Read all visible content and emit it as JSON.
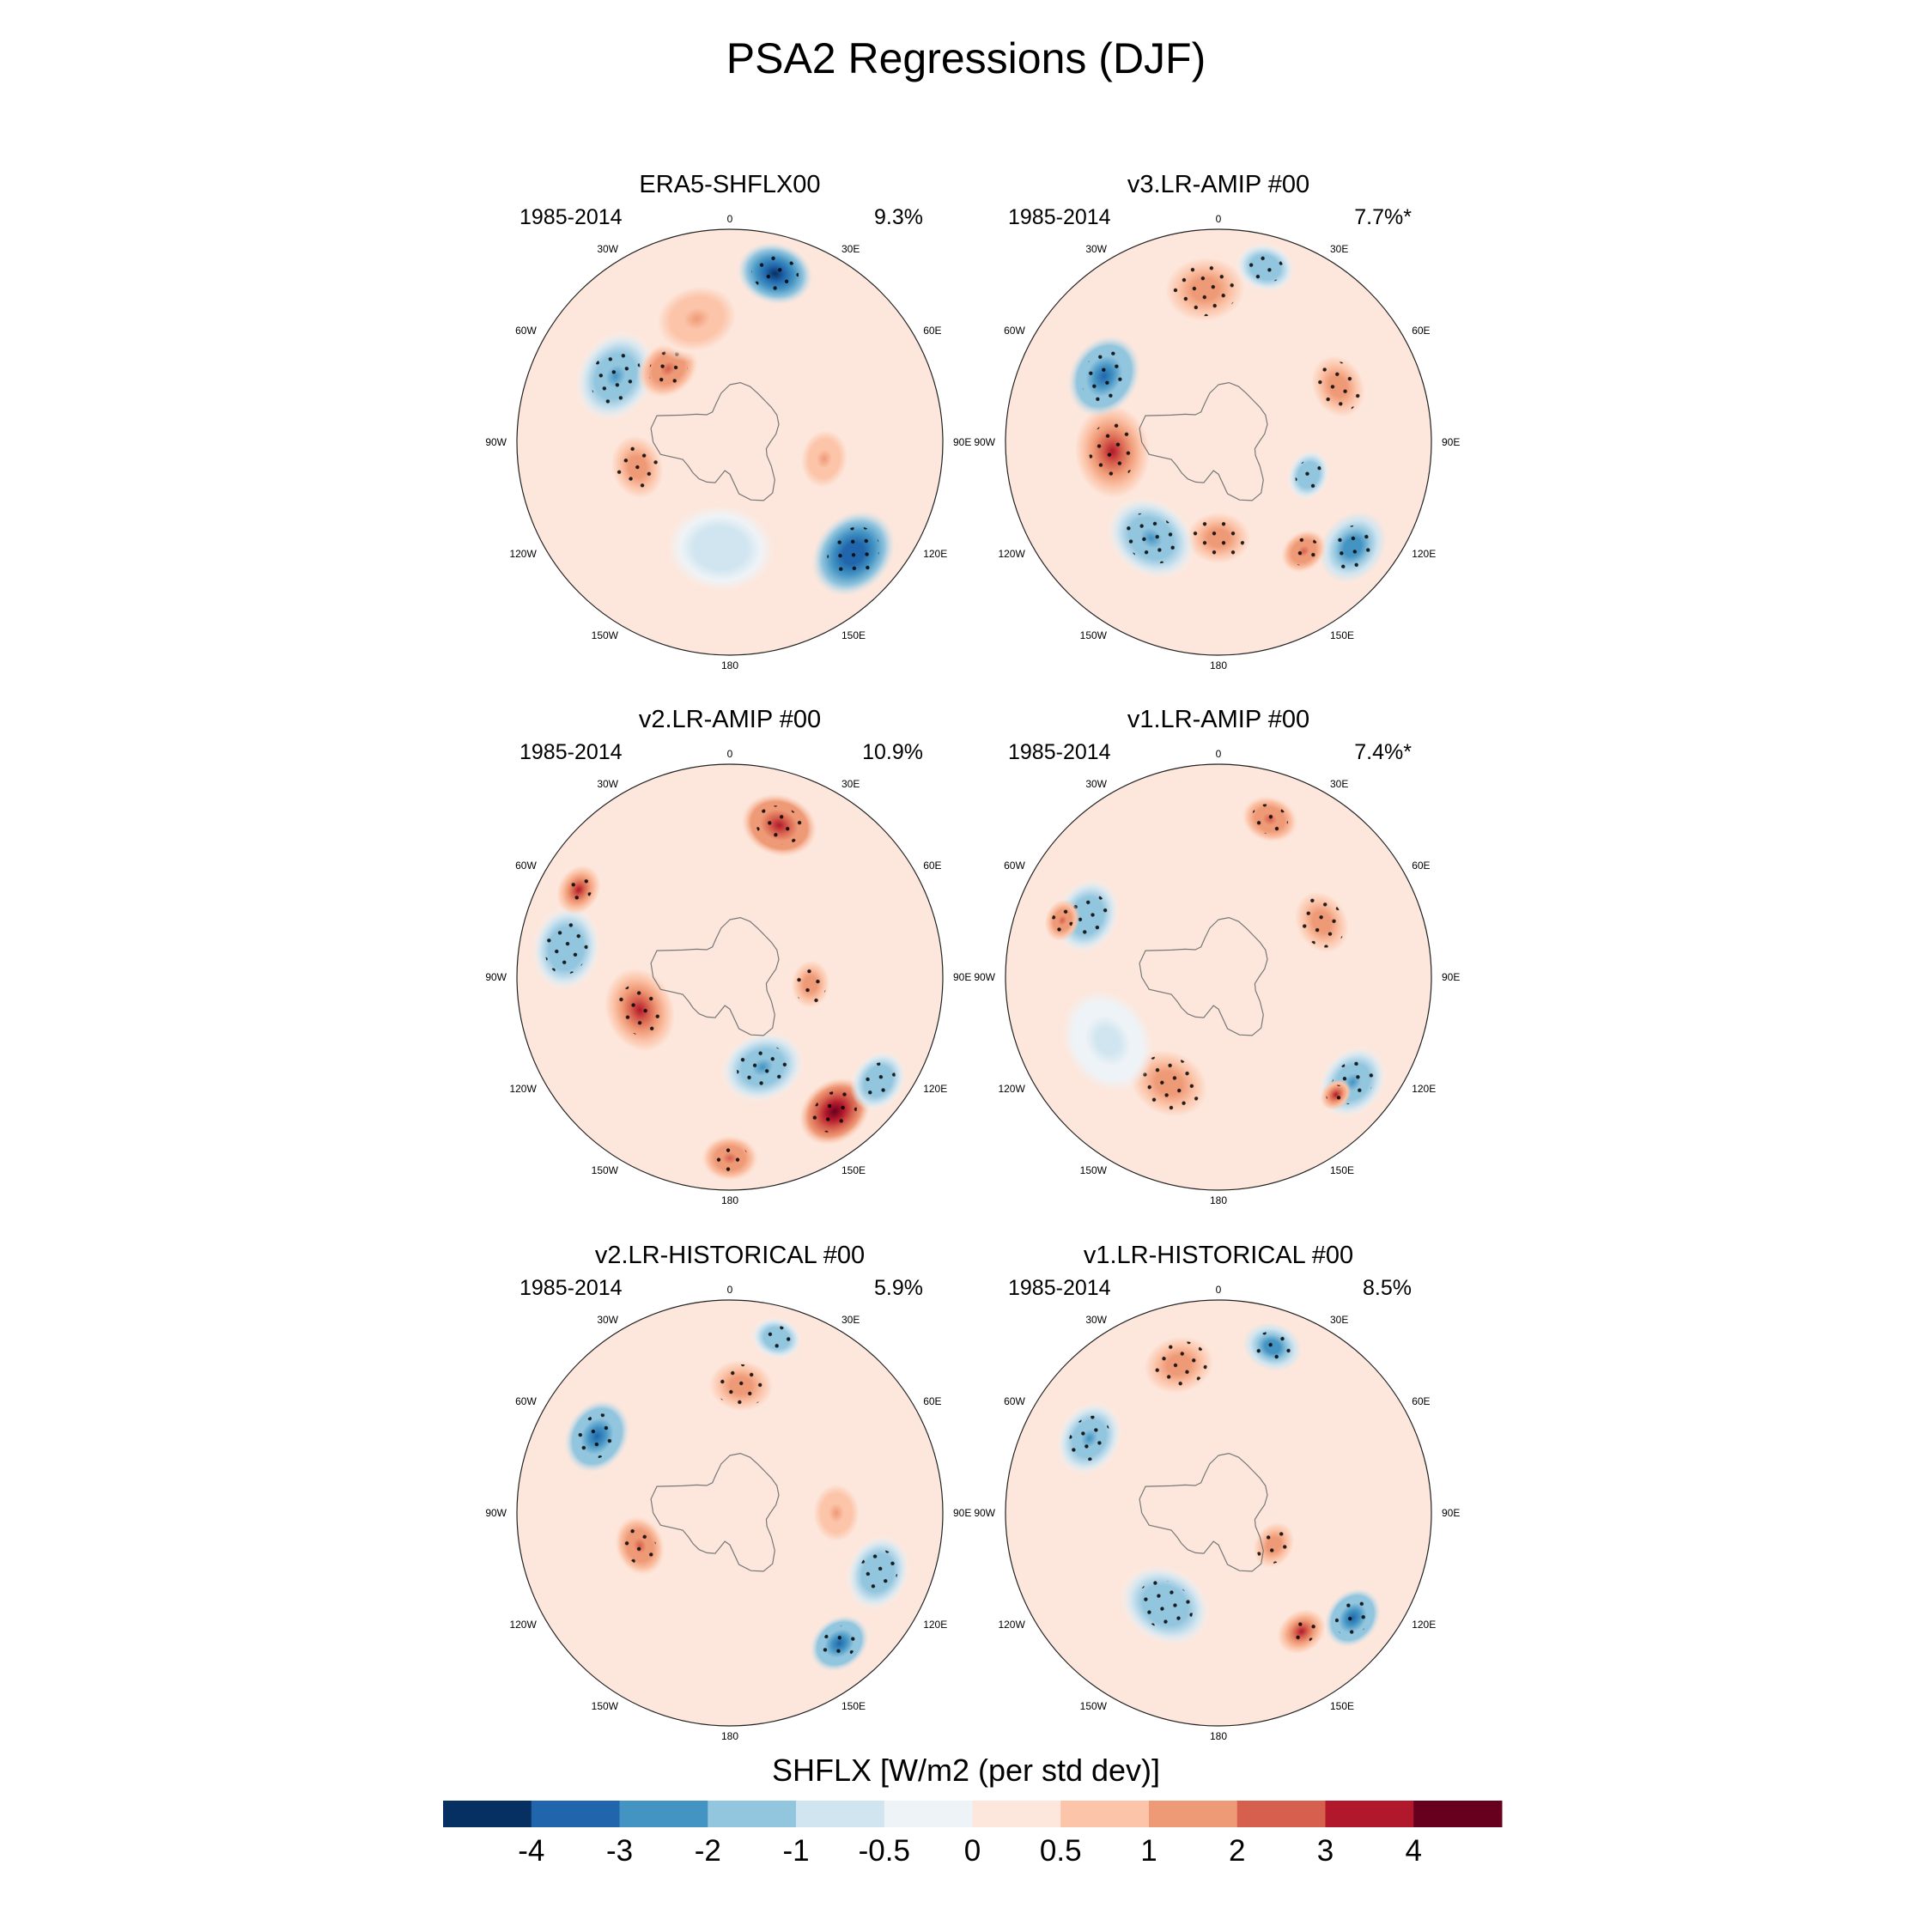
{
  "title": "PSA2 Regressions (DJF)",
  "colorbar": {
    "title": "SHFLX [W/m2 (per std dev)]",
    "colors": [
      "#053061",
      "#2166ac",
      "#4393c3",
      "#92c5de",
      "#d1e5f0",
      "#eef3f7",
      "#fde7dc",
      "#fcc4a9",
      "#ef9a77",
      "#d6604d",
      "#b2182b",
      "#67001f"
    ],
    "tick_labels": [
      "-4",
      "-3",
      "-2",
      "-1",
      "-0.5",
      "0",
      "0.5",
      "1",
      "2",
      "3",
      "4"
    ]
  },
  "lon_labels": [
    "0",
    "30E",
    "60E",
    "90E",
    "120E",
    "150E",
    "180",
    "150W",
    "120W",
    "90W",
    "60W",
    "30W"
  ],
  "panels": [
    {
      "title": "ERA5-SHFLX00",
      "years": "1985-2014",
      "variance": "9.3%",
      "blobs": [
        {
          "lon": 15,
          "r": 0.82,
          "v": -4.5,
          "s": 0.18
        },
        {
          "lon": 132,
          "r": 0.78,
          "v": -4.0,
          "s": 0.22
        },
        {
          "lon": 300,
          "r": 0.62,
          "v": -2.5,
          "s": 0.22
        },
        {
          "lon": 320,
          "r": 0.45,
          "v": 2.0,
          "s": 0.16
        },
        {
          "lon": 345,
          "r": 0.6,
          "v": 1.0,
          "s": 0.25
        },
        {
          "lon": 255,
          "r": 0.45,
          "v": 1.5,
          "s": 0.2
        },
        {
          "lon": 100,
          "r": 0.45,
          "v": 1.0,
          "s": 0.18
        },
        {
          "lon": 185,
          "r": 0.5,
          "v": -1.0,
          "s": 0.25
        }
      ]
    },
    {
      "title": "v3.LR-AMIP  #00",
      "years": "1985-2014",
      "variance": "7.7%*",
      "blobs": [
        {
          "lon": 355,
          "r": 0.72,
          "v": 1.5,
          "s": 0.25
        },
        {
          "lon": 15,
          "r": 0.85,
          "v": -2.0,
          "s": 0.14
        },
        {
          "lon": 65,
          "r": 0.62,
          "v": 1.5,
          "s": 0.2
        },
        {
          "lon": 110,
          "r": 0.45,
          "v": -2.0,
          "s": 0.12
        },
        {
          "lon": 128,
          "r": 0.8,
          "v": -3.0,
          "s": 0.18
        },
        {
          "lon": 142,
          "r": 0.65,
          "v": 2.0,
          "s": 0.12
        },
        {
          "lon": 180,
          "r": 0.45,
          "v": 1.5,
          "s": 0.2
        },
        {
          "lon": 215,
          "r": 0.55,
          "v": -2.5,
          "s": 0.22
        },
        {
          "lon": 265,
          "r": 0.5,
          "v": 3.0,
          "s": 0.22
        },
        {
          "lon": 300,
          "r": 0.62,
          "v": -3.5,
          "s": 0.2
        }
      ]
    },
    {
      "title": "v2.LR-AMIP  #00",
      "years": "1985-2014",
      "variance": "10.9%",
      "blobs": [
        {
          "lon": 18,
          "r": 0.75,
          "v": 3.5,
          "s": 0.18
        },
        {
          "lon": 142,
          "r": 0.8,
          "v": 4.5,
          "s": 0.18
        },
        {
          "lon": 160,
          "r": 0.45,
          "v": -2.5,
          "s": 0.2
        },
        {
          "lon": 180,
          "r": 0.85,
          "v": 2.0,
          "s": 0.14
        },
        {
          "lon": 250,
          "r": 0.45,
          "v": 3.0,
          "s": 0.2
        },
        {
          "lon": 280,
          "r": 0.78,
          "v": -2.0,
          "s": 0.2
        },
        {
          "lon": 300,
          "r": 0.82,
          "v": 3.0,
          "s": 0.12
        },
        {
          "lon": 95,
          "r": 0.38,
          "v": 1.5,
          "s": 0.15
        },
        {
          "lon": 125,
          "r": 0.85,
          "v": -2.0,
          "s": 0.15
        }
      ]
    },
    {
      "title": "v1.LR-AMIP  #00",
      "years": "1985-2014",
      "variance": "7.4%*",
      "blobs": [
        {
          "lon": 18,
          "r": 0.78,
          "v": 2.0,
          "s": 0.14
        },
        {
          "lon": 62,
          "r": 0.55,
          "v": 1.5,
          "s": 0.2
        },
        {
          "lon": 128,
          "r": 0.8,
          "v": -2.5,
          "s": 0.18
        },
        {
          "lon": 135,
          "r": 0.78,
          "v": 3.0,
          "s": 0.08
        },
        {
          "lon": 205,
          "r": 0.55,
          "v": 1.5,
          "s": 0.25
        },
        {
          "lon": 295,
          "r": 0.68,
          "v": -2.0,
          "s": 0.18
        },
        {
          "lon": 290,
          "r": 0.78,
          "v": 2.5,
          "s": 0.1
        },
        {
          "lon": 240,
          "r": 0.6,
          "v": -0.8,
          "s": 0.25
        }
      ]
    },
    {
      "title": "v2.LR-HISTORICAL  #00",
      "years": "1985-2014",
      "variance": "5.9%",
      "blobs": [
        {
          "lon": 5,
          "r": 0.6,
          "v": 1.5,
          "s": 0.2
        },
        {
          "lon": 15,
          "r": 0.85,
          "v": -2.0,
          "s": 0.12
        },
        {
          "lon": 112,
          "r": 0.75,
          "v": -2.0,
          "s": 0.18
        },
        {
          "lon": 140,
          "r": 0.8,
          "v": -3.5,
          "s": 0.15
        },
        {
          "lon": 250,
          "r": 0.45,
          "v": 2.0,
          "s": 0.15
        },
        {
          "lon": 300,
          "r": 0.72,
          "v": -3.5,
          "s": 0.18
        },
        {
          "lon": 90,
          "r": 0.5,
          "v": 1.0,
          "s": 0.18
        }
      ]
    },
    {
      "title": "v1.LR-HISTORICAL  #00",
      "years": "1985-2014",
      "variance": "8.5%",
      "blobs": [
        {
          "lon": 345,
          "r": 0.72,
          "v": 1.5,
          "s": 0.22
        },
        {
          "lon": 18,
          "r": 0.82,
          "v": -3.0,
          "s": 0.14
        },
        {
          "lon": 128,
          "r": 0.8,
          "v": -3.5,
          "s": 0.15
        },
        {
          "lon": 145,
          "r": 0.68,
          "v": 3.0,
          "s": 0.12
        },
        {
          "lon": 210,
          "r": 0.5,
          "v": -2.0,
          "s": 0.22
        },
        {
          "lon": 300,
          "r": 0.7,
          "v": -2.5,
          "s": 0.18
        },
        {
          "lon": 120,
          "r": 0.3,
          "v": 1.5,
          "s": 0.15
        }
      ]
    }
  ]
}
